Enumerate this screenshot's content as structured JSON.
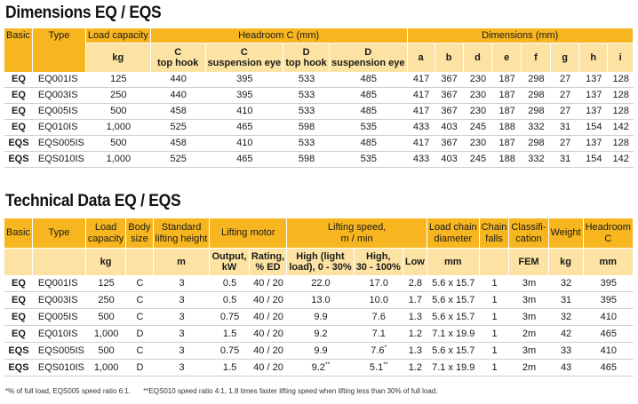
{
  "dimensions": {
    "title": "Dimensions EQ / EQS",
    "header_top": {
      "basic": "Basic",
      "type": "Type",
      "load_capacity": "Load capacity",
      "headroom": "Headroom C (mm)",
      "dimensions_mm": "Dimensions (mm)"
    },
    "header_sub": {
      "kg": "kg",
      "c_top_hook_1": "C",
      "c_top_hook_2": "top hook",
      "c_susp_1": "C",
      "c_susp_2": "suspension eye",
      "d_top_hook_1": "D",
      "d_top_hook_2": "top hook",
      "d_susp_1": "D",
      "d_susp_2": "suspension eye",
      "a": "a",
      "b": "b",
      "d": "d",
      "e": "e",
      "f": "f",
      "g": "g",
      "h": "h",
      "i": "i"
    },
    "rows": [
      [
        "EQ",
        "EQ001IS",
        "125",
        "440",
        "395",
        "533",
        "485",
        "417",
        "367",
        "230",
        "187",
        "298",
        "27",
        "137",
        "128"
      ],
      [
        "EQ",
        "EQ003IS",
        "250",
        "440",
        "395",
        "533",
        "485",
        "417",
        "367",
        "230",
        "187",
        "298",
        "27",
        "137",
        "128"
      ],
      [
        "EQ",
        "EQ005IS",
        "500",
        "458",
        "410",
        "533",
        "485",
        "417",
        "367",
        "230",
        "187",
        "298",
        "27",
        "137",
        "128"
      ],
      [
        "EQ",
        "EQ010IS",
        "1,000",
        "525",
        "465",
        "598",
        "535",
        "433",
        "403",
        "245",
        "188",
        "332",
        "31",
        "154",
        "142"
      ],
      [
        "EQS",
        "EQS005IS",
        "500",
        "458",
        "410",
        "533",
        "485",
        "417",
        "367",
        "230",
        "187",
        "298",
        "27",
        "137",
        "128"
      ],
      [
        "EQS",
        "EQS010IS",
        "1,000",
        "525",
        "465",
        "598",
        "535",
        "433",
        "403",
        "245",
        "188",
        "332",
        "31",
        "154",
        "142"
      ]
    ]
  },
  "technical": {
    "title": "Technical Data EQ / EQS",
    "header_top": {
      "basic": "Basic",
      "type": "Type",
      "load_capacity_1": "Load",
      "load_capacity_2": "capacity",
      "body_size_1": "Body",
      "body_size_2": "size",
      "std_lift_1": "Standard",
      "std_lift_2": "lifting height",
      "lifting_motor": "Lifting motor",
      "lifting_speed_1": "Lifting speed,",
      "lifting_speed_2": "m / min",
      "load_chain_1": "Load chain",
      "load_chain_2": "diameter",
      "chain_falls_1": "Chain",
      "chain_falls_2": "falls",
      "classification_1": "Classifi-",
      "classification_2": "cation",
      "weight": "Weight",
      "headroom_1": "Headroom",
      "headroom_2": "C"
    },
    "header_sub": {
      "kg": "kg",
      "m": "m",
      "output_1": "Output,",
      "output_2": "kW",
      "rating_1": "Rating,",
      "rating_2": "% ED",
      "high_light_1": "High (light",
      "high_light_2": "load), 0 - 30%",
      "high_1": "High,",
      "high_2": "30 - 100%",
      "low": "Low",
      "mm": "mm",
      "fem": "FEM",
      "weight_kg": "kg",
      "headroom_mm": "mm"
    },
    "rows": [
      {
        "cells": [
          "EQ",
          "EQ001IS",
          "125",
          "C",
          "3",
          "0.5",
          "40 / 20",
          "22.0",
          "17.0",
          "2.8",
          "5.6 x 15.7",
          "1",
          "3m",
          "32",
          "395"
        ]
      },
      {
        "cells": [
          "EQ",
          "EQ003IS",
          "250",
          "C",
          "3",
          "0.5",
          "40 / 20",
          "13.0",
          "10.0",
          "1.7",
          "5.6 x 15.7",
          "1",
          "3m",
          "31",
          "395"
        ]
      },
      {
        "cells": [
          "EQ",
          "EQ005IS",
          "500",
          "C",
          "3",
          "0.75",
          "40 / 20",
          "9.9",
          "7.6",
          "1.3",
          "5.6 x 15.7",
          "1",
          "3m",
          "32",
          "410"
        ]
      },
      {
        "cells": [
          "EQ",
          "EQ010IS",
          "1,000",
          "D",
          "3",
          "1.5",
          "40 / 20",
          "9.2",
          "7.1",
          "1.2",
          "7.1 x 19.9",
          "1",
          "2m",
          "42",
          "465"
        ]
      },
      {
        "cells": [
          "EQS",
          "EQS005IS",
          "500",
          "C",
          "3",
          "0.75",
          "40 / 20",
          "9.9",
          "7.6",
          "1.3",
          "5.6 x 15.7",
          "1",
          "3m",
          "33",
          "410"
        ],
        "sup_high": "*"
      },
      {
        "cells": [
          "EQS",
          "EQS010IS",
          "1,000",
          "D",
          "3",
          "1.5",
          "40 / 20",
          "9.2",
          "5.1",
          "1.2",
          "7.1 x 19.9",
          "1",
          "2m",
          "43",
          "465"
        ],
        "sup_light": "**",
        "sup_high": "**"
      }
    ]
  },
  "footnotes": {
    "note1": "*% of full load, EQS005 speed ratio 6:1.",
    "note2": "**EQS010 speed ratio 4:1, 1.8 times faster lifting speed when lifting less than 30% of full load."
  }
}
